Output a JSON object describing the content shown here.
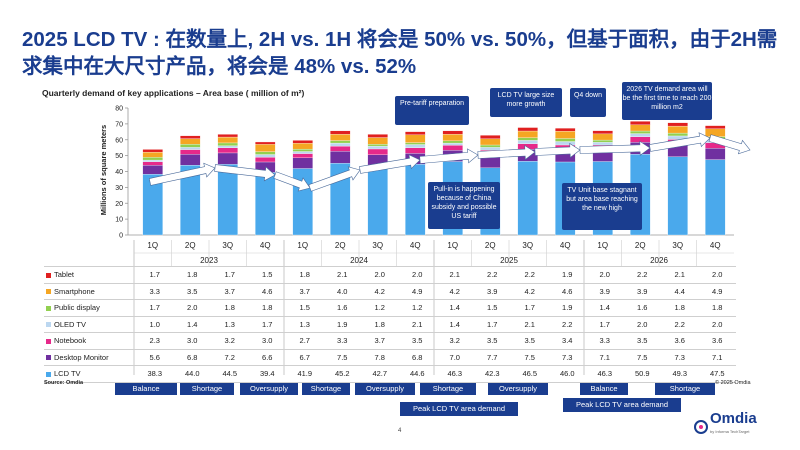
{
  "page": {
    "title": "2025 LCD TV : 在数量上, 2H vs. 1H 将会是 50% vs. 50%，但基于面积，由于2H需求集中在大尺寸产品，将会是 48% vs. 52%",
    "subtitle": "Quarterly demand of key applications – Area base ( million of m²)",
    "source": "Source:  Omdia",
    "copyright": "© 2025 Omdia",
    "page_number": "4",
    "logo_text": "Omdia",
    "logo_sub": "by Informa TechTarget"
  },
  "chart_data": {
    "type": "bar",
    "stacked": true,
    "ylabel": "Millions of square meters",
    "ylim": [
      0,
      80
    ],
    "yticks": [
      0,
      10,
      20,
      30,
      40,
      50,
      60,
      70,
      80
    ],
    "grid": false,
    "categories": [
      "1Q",
      "2Q",
      "3Q",
      "4Q",
      "1Q",
      "2Q",
      "3Q",
      "4Q",
      "1Q",
      "2Q",
      "3Q",
      "4Q",
      "1Q",
      "2Q",
      "3Q",
      "4Q"
    ],
    "years": [
      "2023",
      "2024",
      "2025",
      "2026"
    ],
    "series": [
      {
        "name": "LCD TV",
        "color": "#4aa9ec",
        "values": [
          38.3,
          44.0,
          44.5,
          39.4,
          41.9,
          45.2,
          42.7,
          44.6,
          46.3,
          42.3,
          46.5,
          46.0,
          46.3,
          50.9,
          49.3,
          47.5
        ]
      },
      {
        "name": "Desktop Monitor",
        "color": "#7030a0",
        "values": [
          5.6,
          6.8,
          7.2,
          6.6,
          6.7,
          7.5,
          7.8,
          6.8,
          7.0,
          7.7,
          7.5,
          7.3,
          7.1,
          7.5,
          7.3,
          7.1
        ]
      },
      {
        "name": "Notebook",
        "color": "#e6298a",
        "values": [
          2.3,
          3.0,
          3.2,
          3.0,
          2.7,
          3.3,
          3.7,
          3.5,
          3.2,
          3.5,
          3.5,
          3.4,
          3.3,
          3.5,
          3.6,
          3.6
        ]
      },
      {
        "name": "OLED TV",
        "color": "#bcd7f0",
        "values": [
          1.0,
          1.4,
          1.3,
          1.7,
          1.3,
          1.9,
          1.8,
          2.1,
          1.4,
          1.7,
          2.1,
          2.2,
          1.7,
          2.0,
          2.2,
          2.0
        ]
      },
      {
        "name": "Public display",
        "color": "#92d050",
        "values": [
          1.7,
          2.0,
          1.8,
          1.8,
          1.5,
          1.6,
          1.2,
          1.2,
          1.4,
          1.5,
          1.7,
          1.9,
          1.4,
          1.6,
          1.8,
          1.8
        ]
      },
      {
        "name": "Smartphone",
        "color": "#f5a623",
        "values": [
          3.3,
          3.5,
          3.7,
          4.6,
          3.7,
          4.0,
          4.2,
          4.9,
          4.2,
          3.9,
          4.2,
          4.6,
          3.9,
          3.9,
          4.4,
          4.9
        ]
      },
      {
        "name": "Tablet",
        "color": "#e02020",
        "values": [
          1.7,
          1.8,
          1.7,
          1.5,
          1.8,
          2.1,
          2.0,
          2.0,
          2.1,
          2.2,
          2.2,
          1.9,
          2.0,
          2.2,
          2.1,
          2.0
        ]
      }
    ],
    "table_rows": [
      "Tablet",
      "Smartphone",
      "Public display",
      "OLED TV",
      "Notebook",
      "Desktop Monitor",
      "LCD TV"
    ],
    "callouts": [
      {
        "text": "Pre-tariff preparation"
      },
      {
        "text": "LCD TV large size more growth"
      },
      {
        "text": "Q4 down"
      },
      {
        "text": "2026 TV demand area will be the first time to reach 200 million m2"
      },
      {
        "text": "Pull-in is happening because of China subsidy and possible US tariff"
      },
      {
        "text": "TV Unit base stagnant but area base reaching the new high"
      }
    ],
    "phases": [
      "Balance",
      "Shortage",
      "Oversupply",
      "Shortage",
      "Oversupply",
      "Shortage",
      "Oversupply",
      "Balance",
      "Shortage"
    ],
    "peaks": [
      "Peak LCD TV area demand",
      "Peak LCD TV area demand"
    ]
  }
}
